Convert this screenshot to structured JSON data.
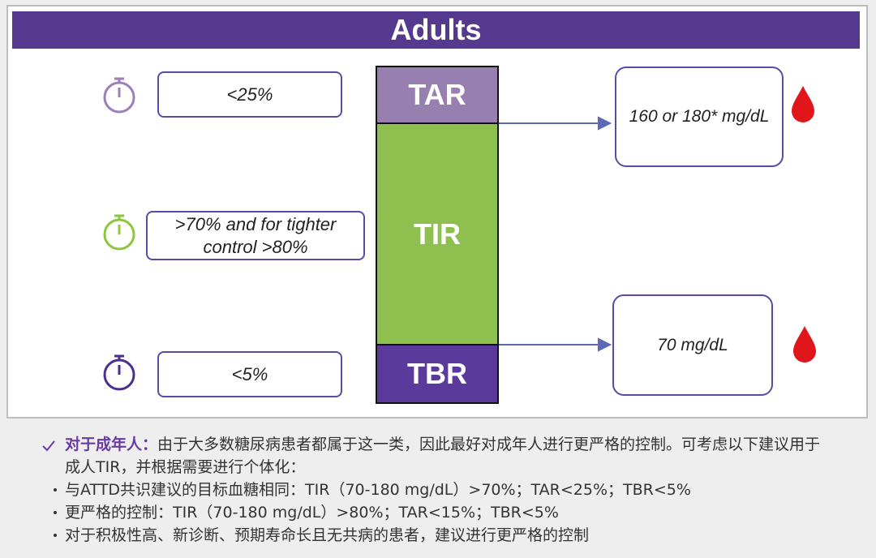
{
  "header": {
    "title": "Adults"
  },
  "goals": [
    {
      "lines": [
        "<25%"
      ]
    },
    {
      "lines": [
        ">70% and for tighter",
        "control >80%"
      ]
    },
    {
      "lines": [
        "<5%"
      ]
    }
  ],
  "segments": [
    "TAR",
    "TIR",
    "TBR"
  ],
  "thresholds": [
    "160 or 180* mg/dL",
    "70 mg/dL"
  ],
  "notes": {
    "lead": "对于成年人：",
    "intro": "由于大多数糖尿病患者都属于这一类，因此最好对成年人进行更严格的控制。可考虑以下建议用于成人TIR，并根据需要进行个体化：",
    "bullets": [
      "与ATTD共识建议的目标血糖相同：TIR（70-180 mg/dL）>70%；TAR<25%；TBR<5%",
      "更严格的控制：TIR（70-180 mg/dL）>80%；TAR<15%；TBR<5%",
      "对于积极性高、新诊断、预期寿命长且无共病的患者，建议进行更严格的控制"
    ]
  }
}
